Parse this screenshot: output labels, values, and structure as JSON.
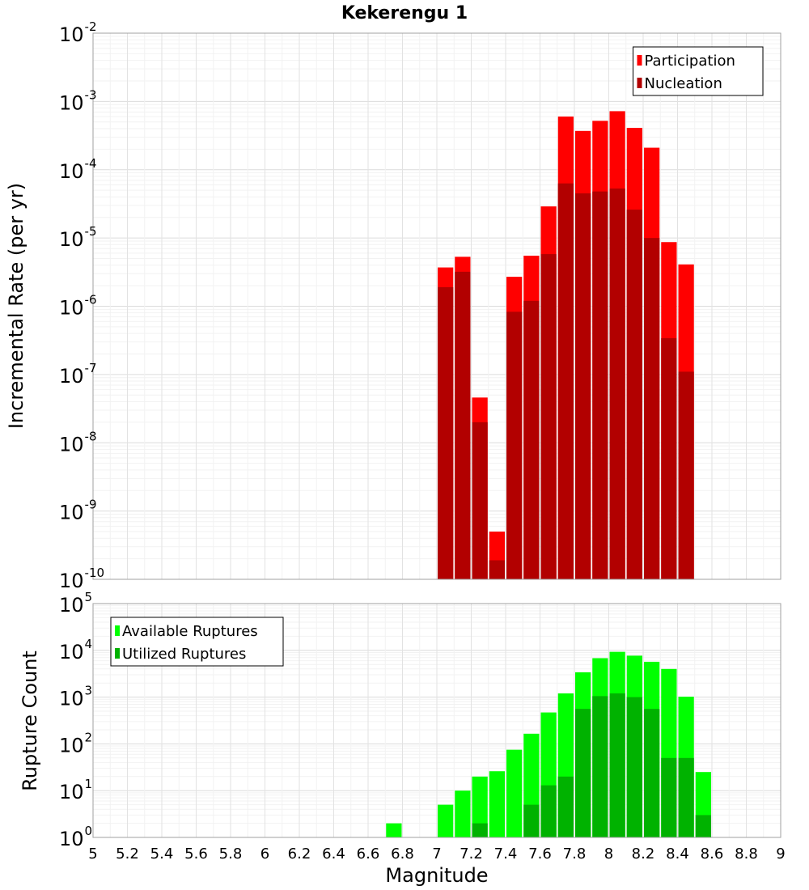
{
  "chart_data": [
    {
      "type": "bar",
      "title": "Kekerengu 1",
      "xlabel": "",
      "ylabel": "Incremental Rate (per yr)",
      "yscale": "log",
      "xlim": [
        5,
        9
      ],
      "ylim": [
        1e-10,
        0.01
      ],
      "y_tick_labels": [
        {
          "base": "10",
          "exp": "-10"
        },
        {
          "base": "10",
          "exp": "-9"
        },
        {
          "base": "10",
          "exp": "-8"
        },
        {
          "base": "10",
          "exp": "-7"
        },
        {
          "base": "10",
          "exp": "-6"
        },
        {
          "base": "10",
          "exp": "-5"
        },
        {
          "base": "10",
          "exp": "-4"
        },
        {
          "base": "10",
          "exp": "-3"
        },
        {
          "base": "10",
          "exp": "-2"
        }
      ],
      "grid": true,
      "legend_position": "top-right",
      "bin_width": 0.1,
      "x": [
        7.05,
        7.15,
        7.25,
        7.35,
        7.45,
        7.55,
        7.65,
        7.75,
        7.85,
        7.95,
        8.05,
        8.15,
        8.25,
        8.35,
        8.45
      ],
      "series": [
        {
          "name": "Participation",
          "color": "#ff0000",
          "values": [
            3.7e-06,
            5.3e-06,
            4.6e-08,
            5e-10,
            2.7e-06,
            5.5e-06,
            2.9e-05,
            0.0006,
            0.00037,
            0.00052,
            0.00072,
            0.00041,
            0.00021,
            8.7e-06,
            4.1e-06
          ]
        },
        {
          "name": "Nucleation",
          "color": "#b20000",
          "values": [
            1.9e-06,
            3.2e-06,
            2e-08,
            1.9e-10,
            8.3e-07,
            1.2e-06,
            5.8e-06,
            6.3e-05,
            4.5e-05,
            4.8e-05,
            5.3e-05,
            2.6e-05,
            1e-05,
            3.4e-07,
            1.1e-07
          ]
        }
      ]
    },
    {
      "type": "bar",
      "title": "",
      "xlabel": "Magnitude",
      "ylabel": "Rupture Count",
      "yscale": "log",
      "xlim": [
        5,
        9
      ],
      "ylim": [
        1,
        100000
      ],
      "y_tick_labels": [
        {
          "base": "10",
          "exp": "0"
        },
        {
          "base": "10",
          "exp": "1"
        },
        {
          "base": "10",
          "exp": "2"
        },
        {
          "base": "10",
          "exp": "3"
        },
        {
          "base": "10",
          "exp": "4"
        },
        {
          "base": "10",
          "exp": "5"
        }
      ],
      "x_tick_labels": [
        "5",
        "5.2",
        "5.4",
        "5.6",
        "5.8",
        "6",
        "6.2",
        "6.4",
        "6.6",
        "6.8",
        "7",
        "7.2",
        "7.4",
        "7.6",
        "7.8",
        "8",
        "8.2",
        "8.4",
        "8.6",
        "8.8",
        "9"
      ],
      "grid": true,
      "legend_position": "top-left",
      "bin_width": 0.1,
      "x": [
        6.75,
        6.95,
        7.05,
        7.15,
        7.25,
        7.35,
        7.45,
        7.55,
        7.65,
        7.75,
        7.85,
        7.95,
        8.05,
        8.15,
        8.25,
        8.35,
        8.45,
        8.55
      ],
      "series": [
        {
          "name": "Available Ruptures",
          "color": "#00ff00",
          "values": [
            2,
            1,
            5,
            10,
            20,
            26,
            75,
            165,
            470,
            1200,
            3400,
            6800,
            9300,
            7700,
            5700,
            4000,
            1020,
            25
          ]
        },
        {
          "name": "Utilized Ruptures",
          "color": "#00b200",
          "values": [
            null,
            null,
            1,
            1,
            2,
            1,
            1,
            5,
            13,
            20,
            560,
            1050,
            1200,
            1000,
            560,
            50,
            50,
            3
          ]
        }
      ]
    }
  ]
}
